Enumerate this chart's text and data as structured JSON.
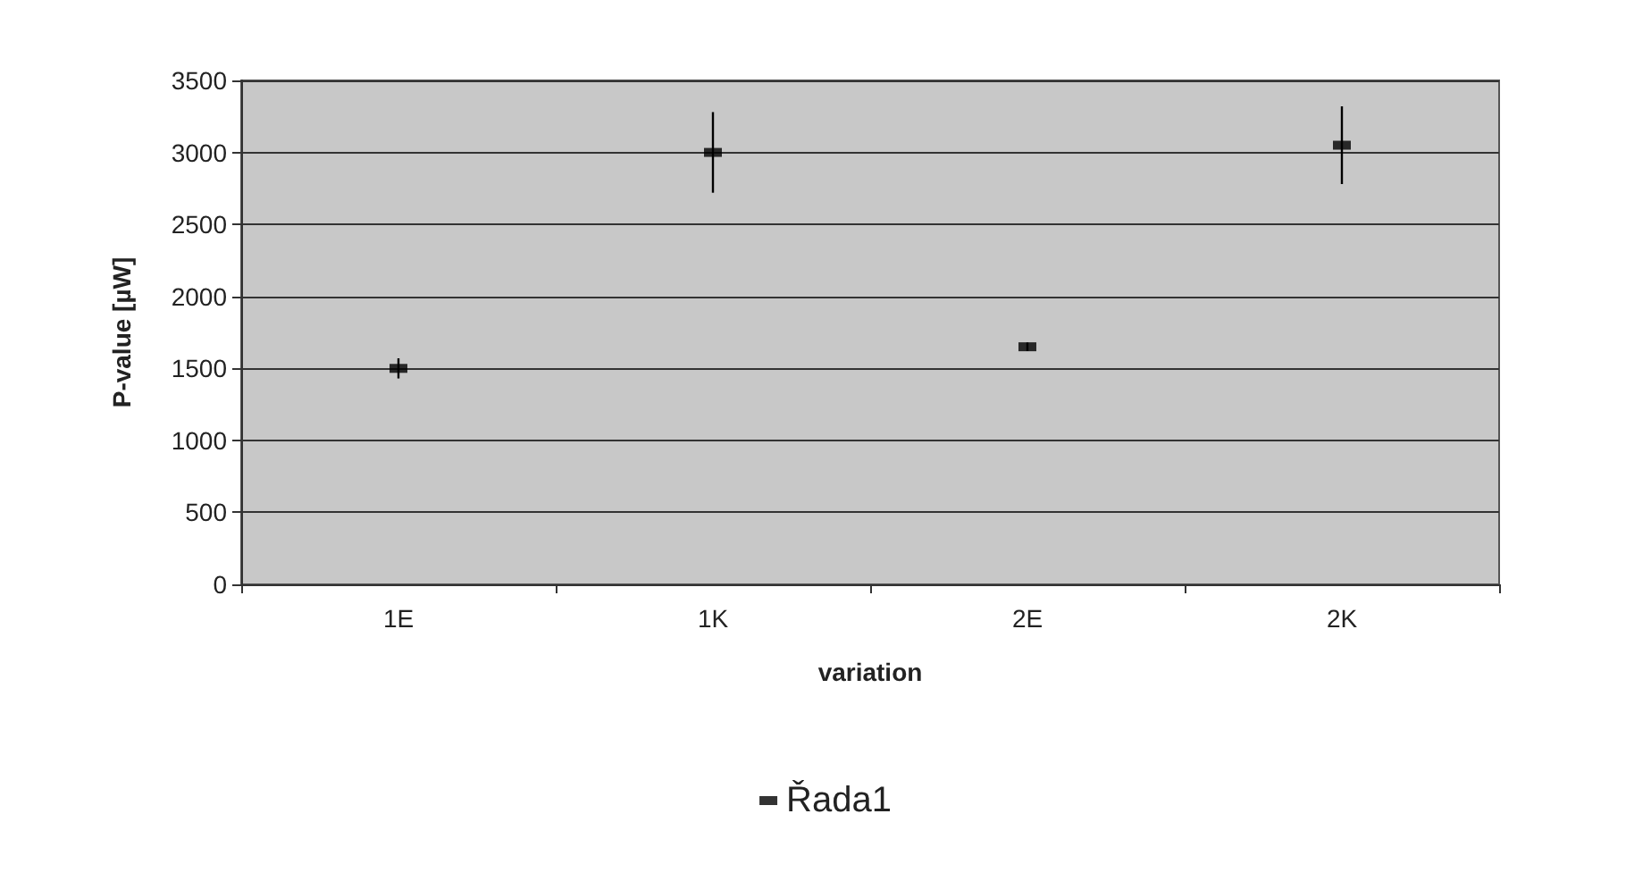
{
  "chart_data": {
    "type": "scatter",
    "xlabel": "variation",
    "ylabel": "P-value [µW]",
    "categories": [
      "1E",
      "1K",
      "2E",
      "2K"
    ],
    "series": [
      {
        "name": "Řada1",
        "color": "#000000",
        "values": [
          1500,
          3000,
          1650,
          3050
        ],
        "errors": [
          70,
          280,
          30,
          270
        ]
      }
    ],
    "ylim": [
      0,
      3500
    ],
    "yticks": [
      0,
      500,
      1000,
      1500,
      2000,
      2500,
      3000,
      3500
    ],
    "grid": "y",
    "legend": "bottom",
    "marker": "square"
  }
}
